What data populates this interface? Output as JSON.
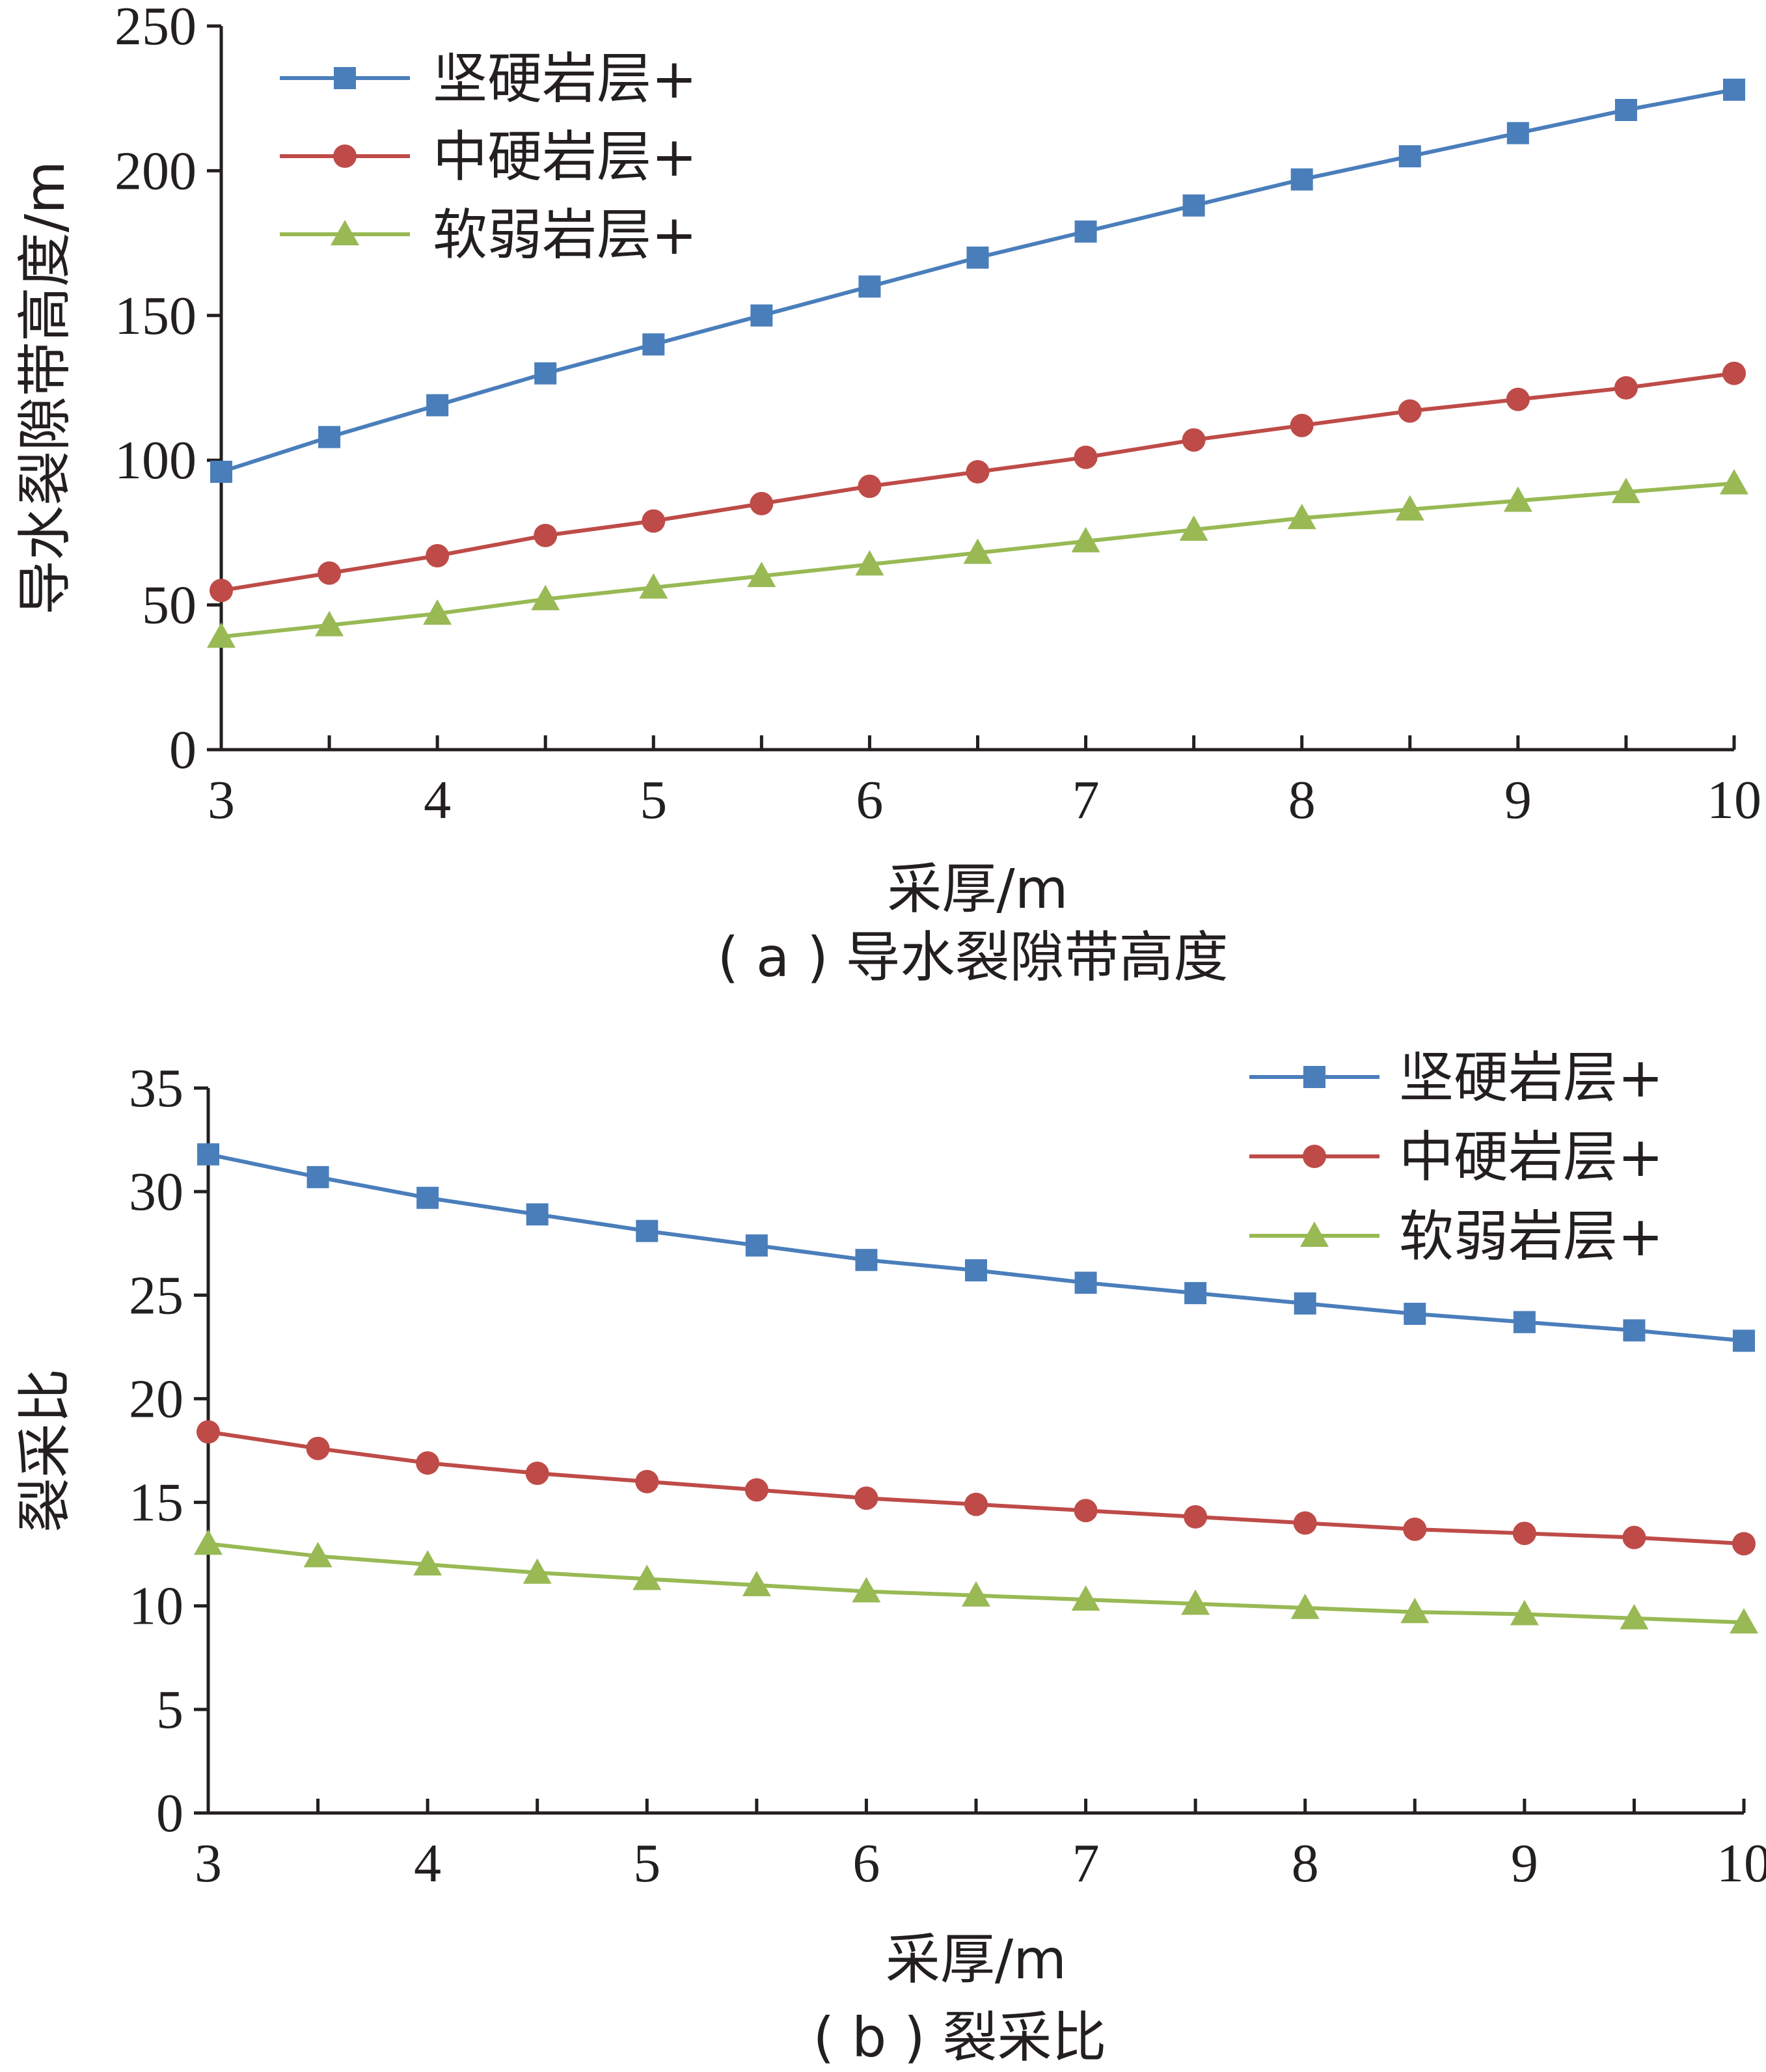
{
  "colors": {
    "hard": "#4a7ebb",
    "medium": "#be4b48",
    "weak": "#98b954",
    "axis": "#231f20"
  },
  "chart_data": [
    {
      "type": "line",
      "caption": "( a ) 导水裂隙带高度",
      "xlabel": "采厚/m",
      "ylabel": "导水裂隙带高度/m",
      "xlim": [
        3,
        10
      ],
      "ylim": [
        0,
        250
      ],
      "xticks": [
        "3",
        "4",
        "5",
        "6",
        "7",
        "8",
        "9",
        "10"
      ],
      "yticks": [
        "0",
        "50",
        "100",
        "150",
        "200",
        "250"
      ],
      "grid": false,
      "legend_position": "top-left",
      "x": [
        3,
        3.5,
        4,
        4.5,
        5,
        5.5,
        6,
        6.5,
        7,
        7.5,
        8,
        8.5,
        9,
        9.5,
        10
      ],
      "series": [
        {
          "name": "坚硬岩层+",
          "color": "#4a7ebb",
          "marker": "square",
          "values": [
            96,
            108,
            119,
            130,
            140,
            150,
            160,
            170,
            179,
            188,
            197,
            205,
            213,
            221,
            228
          ]
        },
        {
          "name": "中硬岩层+",
          "color": "#be4b48",
          "marker": "circle",
          "values": [
            55,
            61,
            67,
            74,
            79,
            85,
            91,
            96,
            101,
            107,
            112,
            117,
            121,
            125,
            130
          ]
        },
        {
          "name": "软弱岩层+",
          "color": "#98b954",
          "marker": "triangle",
          "values": [
            39,
            43,
            47,
            52,
            56,
            60,
            64,
            68,
            72,
            76,
            80,
            83,
            86,
            89,
            92
          ]
        }
      ]
    },
    {
      "type": "line",
      "caption": "( b ) 裂采比",
      "xlabel": "采厚/m",
      "ylabel": "裂采比",
      "xlim": [
        3,
        10
      ],
      "ylim": [
        0,
        35
      ],
      "xticks": [
        "3",
        "4",
        "5",
        "6",
        "7",
        "8",
        "9",
        "10"
      ],
      "yticks": [
        "0",
        "5",
        "10",
        "15",
        "20",
        "25",
        "30",
        "35"
      ],
      "grid": false,
      "legend_position": "top-right",
      "x": [
        3,
        3.5,
        4,
        4.5,
        5,
        5.5,
        6,
        6.5,
        7,
        7.5,
        8,
        8.5,
        9,
        9.5,
        10
      ],
      "series": [
        {
          "name": "坚硬岩层+",
          "color": "#4a7ebb",
          "marker": "square",
          "values": [
            31.8,
            30.7,
            29.7,
            28.9,
            28.1,
            27.4,
            26.7,
            26.2,
            25.6,
            25.1,
            24.6,
            24.1,
            23.7,
            23.3,
            22.8
          ]
        },
        {
          "name": "中硬岩层+",
          "color": "#be4b48",
          "marker": "circle",
          "values": [
            18.4,
            17.6,
            16.9,
            16.4,
            16.0,
            15.6,
            15.2,
            14.9,
            14.6,
            14.3,
            14.0,
            13.7,
            13.5,
            13.3,
            13.0
          ]
        },
        {
          "name": "软弱岩层+",
          "color": "#98b954",
          "marker": "triangle",
          "values": [
            13.0,
            12.4,
            12.0,
            11.6,
            11.3,
            11.0,
            10.7,
            10.5,
            10.3,
            10.1,
            9.9,
            9.7,
            9.6,
            9.4,
            9.2
          ]
        }
      ]
    }
  ]
}
